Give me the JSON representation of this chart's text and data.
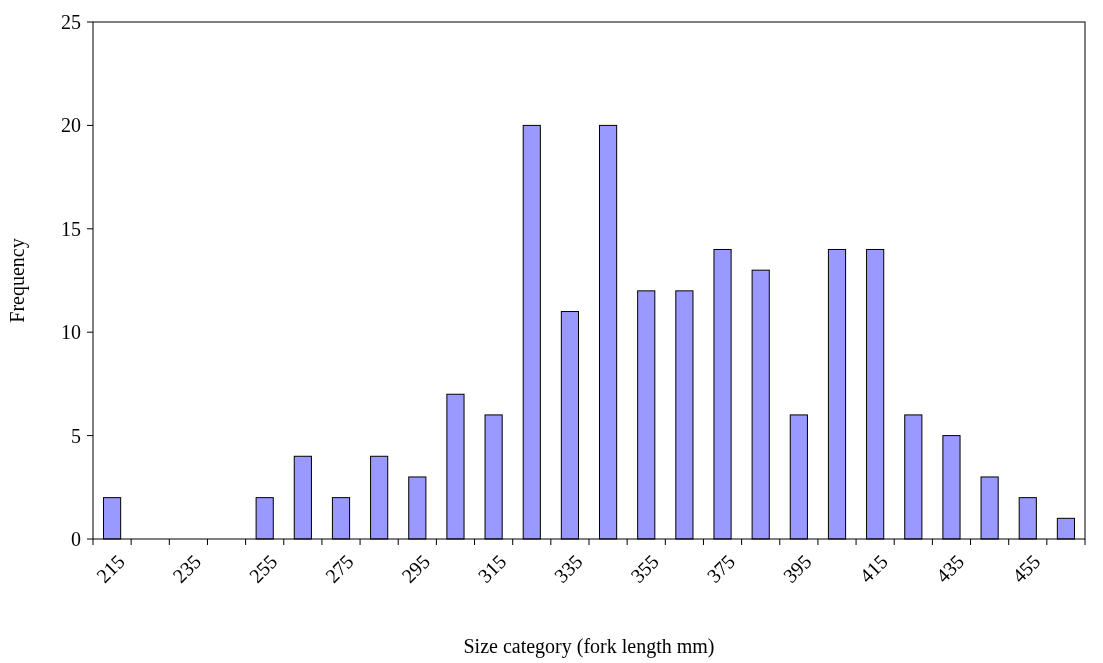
{
  "chart_data": {
    "type": "bar",
    "xlabel": "Size category (fork length mm)",
    "ylabel": "Frequency",
    "categories": [
      "215",
      null,
      "235",
      null,
      "255",
      null,
      "275",
      null,
      "295",
      null,
      "315",
      null,
      "335",
      null,
      "355",
      null,
      "375",
      null,
      "395",
      null,
      "415",
      null,
      "435",
      null,
      "455",
      null
    ],
    "values": [
      2,
      0,
      0,
      0,
      2,
      4,
      2,
      4,
      3,
      7,
      6,
      20,
      11,
      20,
      12,
      12,
      14,
      13,
      6,
      14,
      14,
      6,
      5,
      3,
      2,
      1
    ],
    "color": "#9999ff",
    "ylim": [
      0,
      25
    ],
    "yticks": [
      0,
      5,
      10,
      15,
      20,
      25
    ],
    "grid": false
  }
}
